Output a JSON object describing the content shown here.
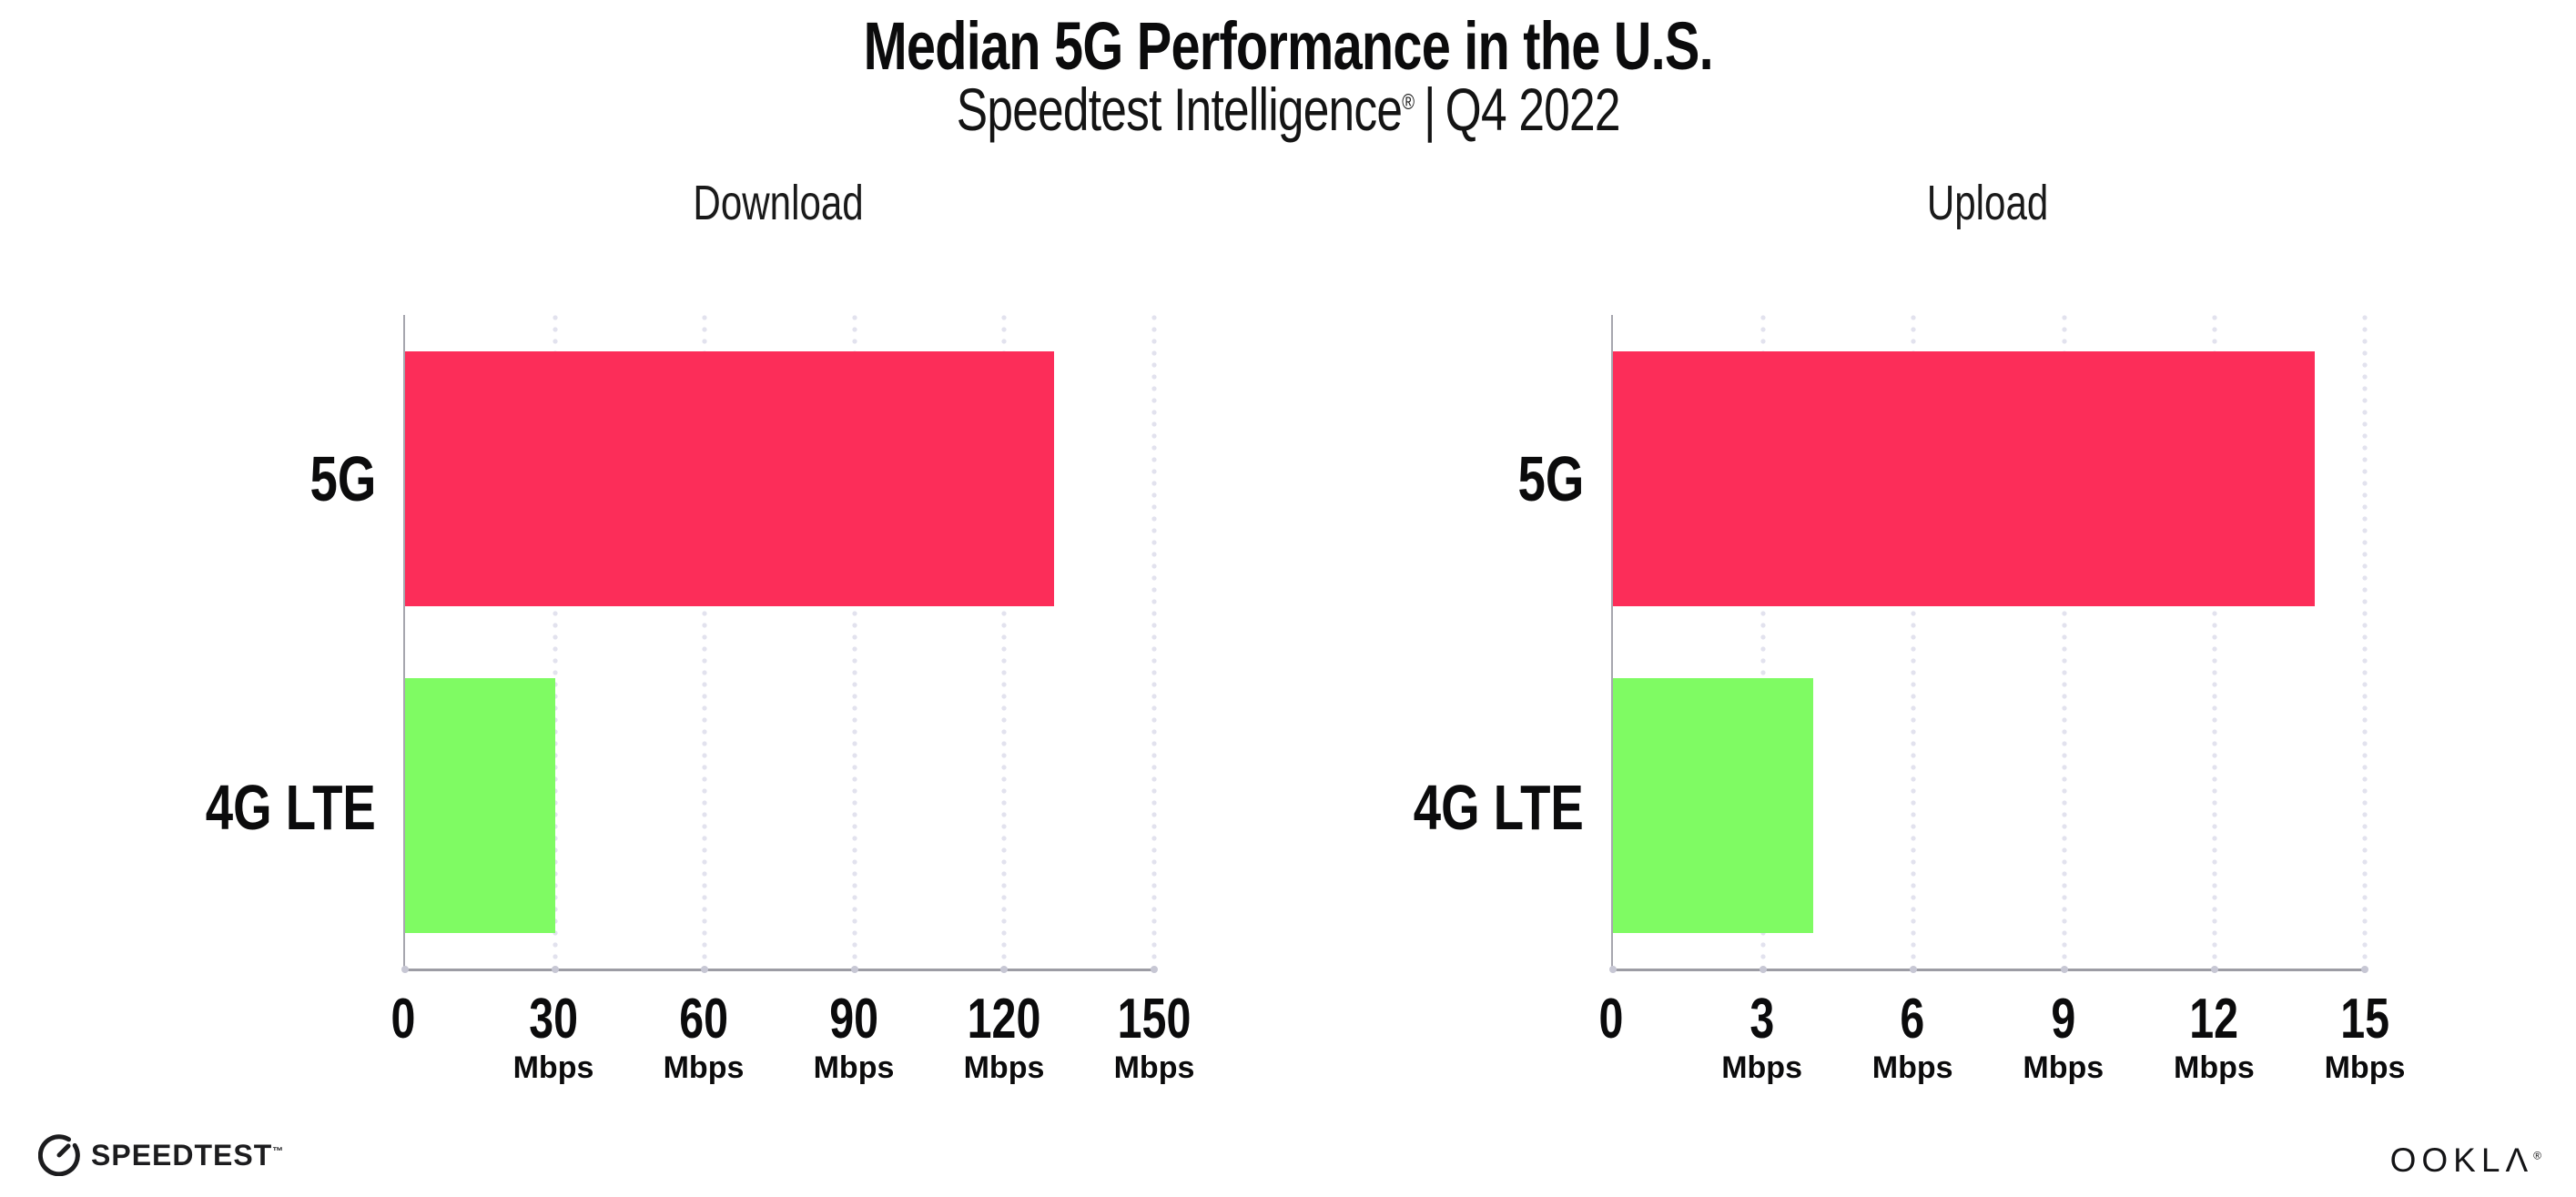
{
  "header": {
    "title": "Median 5G Performance in the U.S.",
    "subtitle_brand": "Speedtest Intelligence",
    "subtitle_reg": "®",
    "subtitle_sep": "|",
    "subtitle_period": "Q4 2022"
  },
  "colors": {
    "bar_5g": "#FC2D59",
    "bar_4g_lte": "#7FFB63",
    "axis": "#A6A6AE",
    "gridline": "#E2E2EE",
    "text": "#0B0B0C"
  },
  "chart_data": [
    {
      "type": "bar",
      "orientation": "horizontal",
      "title": "Download",
      "categories": [
        "5G",
        "4G LTE"
      ],
      "values": [
        130,
        30
      ],
      "unit": "Mbps",
      "xlim": [
        0,
        150
      ],
      "xticks": [
        0,
        30,
        60,
        90,
        120,
        150
      ],
      "grid": "vertical-dotted",
      "legend": "none",
      "bar_colors": [
        "#FC2D59",
        "#7FFB63"
      ]
    },
    {
      "type": "bar",
      "orientation": "horizontal",
      "title": "Upload",
      "categories": [
        "5G",
        "4G LTE"
      ],
      "values": [
        14,
        4
      ],
      "unit": "Mbps",
      "xlim": [
        0,
        15
      ],
      "xticks": [
        0,
        3,
        6,
        9,
        12,
        15
      ],
      "grid": "vertical-dotted",
      "legend": "none",
      "bar_colors": [
        "#FC2D59",
        "#7FFB63"
      ]
    }
  ],
  "footer": {
    "speedtest_label": "SPEEDTEST",
    "speedtest_tm": "™",
    "ookla_label": "OOKLΛ",
    "ookla_reg": "®"
  }
}
